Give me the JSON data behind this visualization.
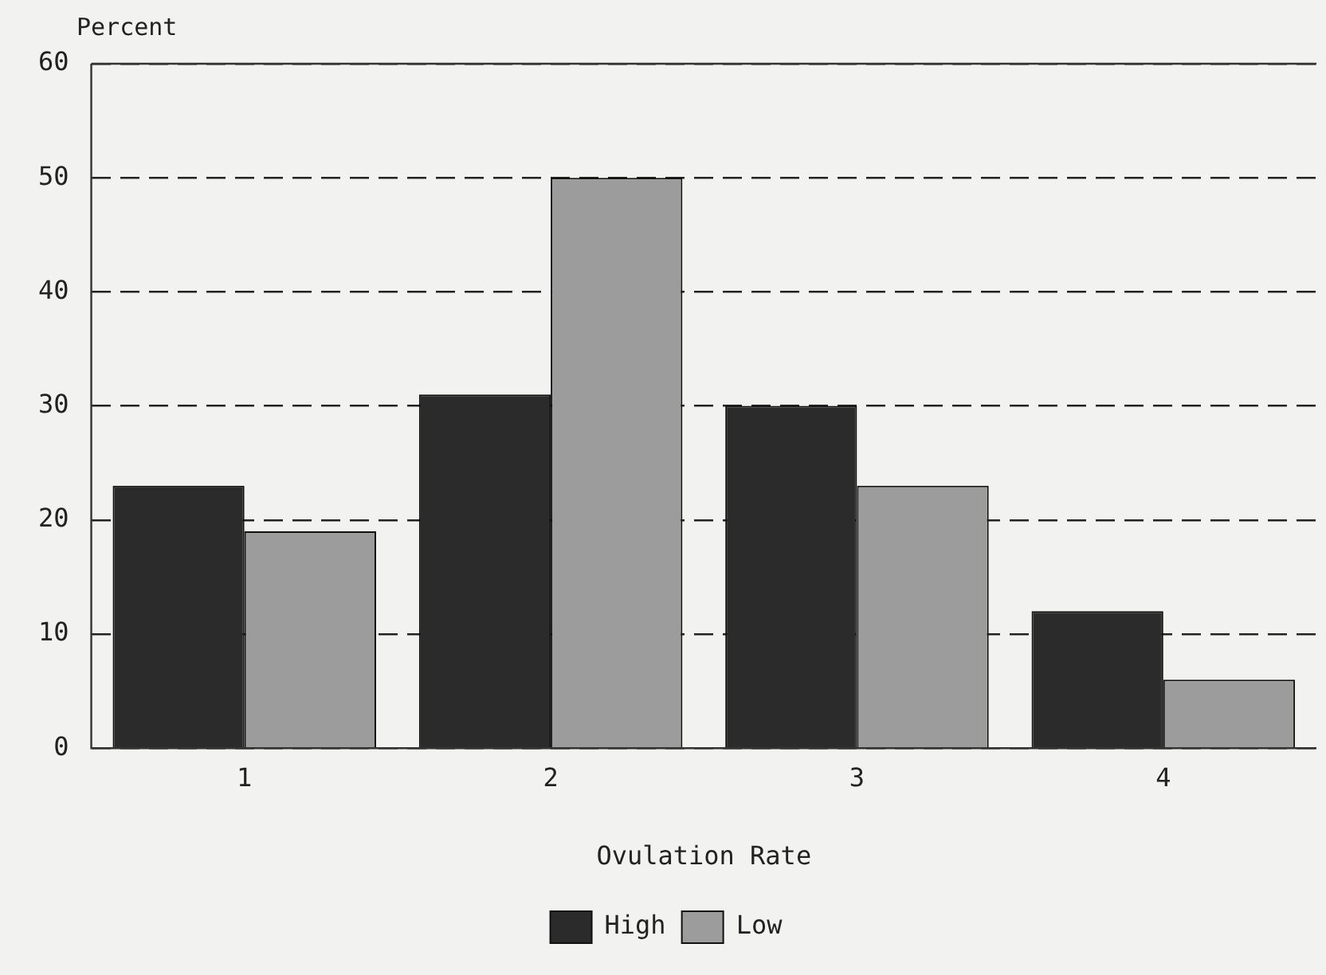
{
  "chart_data": {
    "type": "bar",
    "ylabel": "Percent",
    "xlabel": "Ovulation Rate",
    "categories": [
      "1",
      "2",
      "3",
      "4"
    ],
    "series": [
      {
        "name": "High",
        "color": "#2b2b2b",
        "values": [
          23,
          31,
          30,
          12
        ]
      },
      {
        "name": "Low",
        "color": "#9c9c9c",
        "values": [
          19,
          50,
          23,
          6
        ]
      }
    ],
    "ylim": [
      0,
      60
    ],
    "yticks": [
      0,
      10,
      20,
      30,
      40,
      50,
      60
    ],
    "grid": "y",
    "line_style": "dashed",
    "legend": "bottom"
  }
}
